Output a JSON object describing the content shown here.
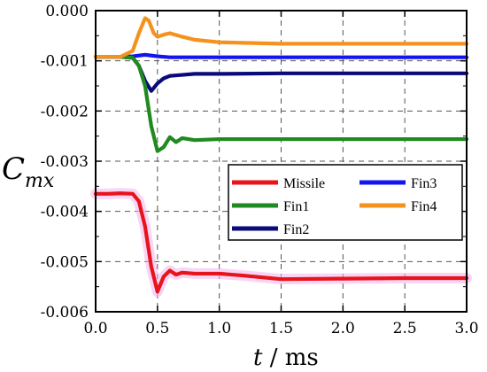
{
  "chart_data": {
    "type": "line",
    "xlabel_var": "t",
    "xlabel_unit": "ms",
    "ylabel_main": "C",
    "ylabel_sub": "mx",
    "xlim": [
      0.0,
      3.0
    ],
    "ylim": [
      -0.006,
      0.0
    ],
    "x_ticks": [
      "0.0",
      "0.5",
      "1.0",
      "1.5",
      "2.0",
      "2.5",
      "3.0"
    ],
    "y_ticks": [
      "0.000",
      "-0.001",
      "-0.002",
      "-0.003",
      "-0.004",
      "-0.005",
      "-0.006"
    ],
    "grid": true,
    "legend_position": "center-right",
    "series": [
      {
        "name": "Missile",
        "color": "#e8141b",
        "x": [
          0.0,
          0.1,
          0.2,
          0.3,
          0.35,
          0.4,
          0.45,
          0.5,
          0.55,
          0.6,
          0.65,
          0.7,
          0.8,
          1.0,
          1.2,
          1.5,
          2.0,
          2.5,
          3.0
        ],
        "y": [
          -0.00365,
          -0.00365,
          -0.00364,
          -0.00365,
          -0.0038,
          -0.0043,
          -0.0051,
          -0.0056,
          -0.0053,
          -0.00518,
          -0.00526,
          -0.00522,
          -0.00524,
          -0.00524,
          -0.00528,
          -0.00535,
          -0.00534,
          -0.00533,
          -0.00533
        ]
      },
      {
        "name": "Fin1",
        "color": "#1f8a1f",
        "x": [
          0.0,
          0.1,
          0.2,
          0.3,
          0.35,
          0.4,
          0.45,
          0.5,
          0.55,
          0.6,
          0.65,
          0.7,
          0.8,
          1.0,
          1.5,
          2.0,
          2.5,
          3.0
        ],
        "y": [
          -0.00092,
          -0.00092,
          -0.00092,
          -0.00094,
          -0.0011,
          -0.0015,
          -0.0023,
          -0.0028,
          -0.00272,
          -0.00252,
          -0.00262,
          -0.00254,
          -0.00258,
          -0.00256,
          -0.00256,
          -0.00256,
          -0.00256,
          -0.00256
        ]
      },
      {
        "name": "Fin2",
        "color": "#0a0a7a",
        "x": [
          0.0,
          0.1,
          0.2,
          0.3,
          0.35,
          0.4,
          0.45,
          0.5,
          0.55,
          0.6,
          0.7,
          0.8,
          1.0,
          1.5,
          2.0,
          2.5,
          3.0
        ],
        "y": [
          -0.00092,
          -0.00092,
          -0.00092,
          -0.00094,
          -0.0011,
          -0.0014,
          -0.0016,
          -0.00145,
          -0.00135,
          -0.0013,
          -0.00128,
          -0.00126,
          -0.00126,
          -0.00125,
          -0.00125,
          -0.00125,
          -0.00125
        ]
      },
      {
        "name": "Fin3",
        "color": "#1414f0",
        "x": [
          0.0,
          0.2,
          0.3,
          0.4,
          0.5,
          0.6,
          0.8,
          1.0,
          1.5,
          2.0,
          2.5,
          3.0
        ],
        "y": [
          -0.00092,
          -0.00092,
          -0.00091,
          -0.00088,
          -0.00091,
          -0.00093,
          -0.00093,
          -0.00093,
          -0.00093,
          -0.00093,
          -0.00093,
          -0.00093
        ]
      },
      {
        "name": "Fin4",
        "color": "#f5921e",
        "x": [
          0.0,
          0.2,
          0.3,
          0.35,
          0.4,
          0.43,
          0.47,
          0.5,
          0.55,
          0.6,
          0.7,
          0.8,
          1.0,
          1.5,
          2.0,
          2.5,
          3.0
        ],
        "y": [
          -0.00092,
          -0.00092,
          -0.0008,
          -0.00045,
          -0.00015,
          -0.0002,
          -0.00045,
          -0.00052,
          -0.00048,
          -0.00045,
          -0.00052,
          -0.00058,
          -0.00063,
          -0.00066,
          -0.00066,
          -0.00066,
          -0.00066
        ]
      }
    ],
    "legend_layout": [
      [
        "Missile",
        "Fin3"
      ],
      [
        "Fin1",
        "Fin4"
      ],
      [
        "Fin2",
        null
      ]
    ]
  }
}
